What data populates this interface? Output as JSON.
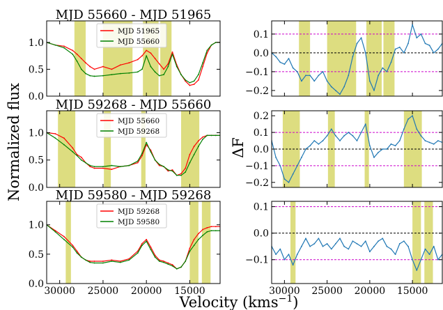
{
  "figure": {
    "xlabel": "Velocity (kms",
    "xlabel_sup": "−1",
    "xlabel_end": ")",
    "ylabel_left": "Normalized flux",
    "ylabel_right": "ΔF"
  },
  "chart_data": [
    {
      "id": "flux1",
      "type": "line",
      "title": "MJD 55660 - MJD 51965",
      "xlabel": "",
      "ylabel": "Normalized flux",
      "xlim": [
        31500,
        11500
      ],
      "ylim": [
        0,
        1.4
      ],
      "yticks": [
        0.0,
        0.5,
        1.0
      ],
      "ytick_labels": [
        "0.0",
        "0.5",
        "1.0"
      ],
      "xticks": [
        30000,
        25000,
        20000,
        15000
      ],
      "xtick_labels": [],
      "bands": [
        [
          28300,
          27000
        ],
        [
          25000,
          21600
        ],
        [
          20400,
          18600
        ],
        [
          18400,
          17100
        ]
      ],
      "legend": "top-center",
      "series": [
        {
          "name": "MJD 51965",
          "color": "#ff0000",
          "x": [
            31500,
            30500,
            29500,
            28500,
            28000,
            27500,
            27000,
            26500,
            26000,
            25000,
            24000,
            23000,
            22000,
            21000,
            20500,
            20000,
            19500,
            19000,
            18500,
            18000,
            17500,
            17000,
            16500,
            16000,
            15500,
            15000,
            14500,
            14000,
            13500,
            13000,
            12500,
            12000,
            11500
          ],
          "y": [
            1.0,
            0.95,
            0.93,
            0.85,
            0.78,
            0.7,
            0.62,
            0.55,
            0.5,
            0.55,
            0.5,
            0.58,
            0.62,
            0.68,
            0.75,
            0.85,
            0.8,
            0.7,
            0.6,
            0.5,
            0.6,
            0.82,
            0.58,
            0.4,
            0.28,
            0.2,
            0.22,
            0.3,
            0.55,
            0.8,
            0.95,
            1.0,
            1.0
          ]
        },
        {
          "name": "MJD 55660",
          "color": "#008000",
          "x": [
            31500,
            30500,
            29500,
            28500,
            28000,
            27500,
            27000,
            26500,
            26000,
            25000,
            24000,
            23000,
            22000,
            21000,
            20500,
            20000,
            19500,
            19000,
            18500,
            18000,
            17500,
            17000,
            16500,
            16000,
            15500,
            15000,
            14500,
            14000,
            13500,
            13000,
            12500,
            12000,
            11500
          ],
          "y": [
            1.0,
            0.95,
            0.9,
            0.78,
            0.65,
            0.5,
            0.42,
            0.38,
            0.37,
            0.38,
            0.4,
            0.42,
            0.43,
            0.45,
            0.5,
            0.75,
            0.55,
            0.45,
            0.38,
            0.4,
            0.55,
            0.78,
            0.55,
            0.4,
            0.3,
            0.25,
            0.28,
            0.4,
            0.62,
            0.85,
            0.95,
            1.0,
            1.0
          ]
        }
      ]
    },
    {
      "id": "diff1",
      "type": "line",
      "title": "",
      "xlim": [
        31500,
        11500
      ],
      "ylim": [
        -0.23,
        0.17
      ],
      "yticks": [
        -0.2,
        -0.1,
        0.0,
        0.1
      ],
      "ytick_labels": [
        "−0.2",
        "−0.1",
        "0.0",
        "0.1"
      ],
      "xticks": [
        30000,
        25000,
        20000,
        15000
      ],
      "xtick_labels": [],
      "bands": [
        [
          28300,
          27000
        ],
        [
          25000,
          21600
        ],
        [
          20400,
          18600
        ],
        [
          18400,
          17100
        ]
      ],
      "hlines": [
        {
          "y": 0.0,
          "color": "#000000"
        },
        {
          "y": 0.1,
          "color": "#cc00cc"
        },
        {
          "y": -0.1,
          "color": "#cc00cc"
        }
      ],
      "series": [
        {
          "name": "",
          "color": "#1f77b4",
          "x": [
            31500,
            31000,
            30500,
            30000,
            29500,
            29000,
            28500,
            28000,
            27500,
            27000,
            26500,
            26000,
            25500,
            25000,
            24500,
            24000,
            23500,
            23000,
            22500,
            22000,
            21500,
            21000,
            20500,
            20000,
            19500,
            19000,
            18500,
            18000,
            17500,
            17000,
            16500,
            16000,
            15500,
            15000,
            14500,
            14000,
            13500,
            13000,
            12500,
            12000,
            11500
          ],
          "y": [
            0.0,
            -0.02,
            -0.05,
            -0.06,
            -0.03,
            -0.08,
            -0.1,
            -0.15,
            -0.12,
            -0.12,
            -0.15,
            -0.12,
            -0.1,
            -0.15,
            -0.18,
            -0.2,
            -0.22,
            -0.18,
            -0.12,
            -0.02,
            0.05,
            0.08,
            0.0,
            -0.15,
            -0.2,
            -0.12,
            -0.08,
            -0.1,
            -0.05,
            0.02,
            0.03,
            0.0,
            0.05,
            0.15,
            0.08,
            0.1,
            0.05,
            0.04,
            0.0,
            0.02,
            0.05
          ]
        }
      ]
    },
    {
      "id": "flux2",
      "type": "line",
      "title": "MJD 59268 - MJD 55660",
      "xlim": [
        31500,
        11500
      ],
      "ylim": [
        0,
        1.4
      ],
      "yticks": [
        0.0,
        0.5,
        1.0
      ],
      "ytick_labels": [
        "0.0",
        "0.5",
        "1.0"
      ],
      "xticks": [
        30000,
        25000,
        20000,
        15000
      ],
      "xtick_labels": [],
      "bands": [
        [
          30200,
          28200
        ],
        [
          24900,
          24100
        ],
        [
          20600,
          20100
        ],
        [
          16000,
          13900
        ]
      ],
      "legend": "top-center",
      "series": [
        {
          "name": "MJD 55660",
          "color": "#ff0000",
          "x": [
            31500,
            30500,
            29500,
            28500,
            28000,
            27500,
            27000,
            26500,
            26000,
            25000,
            24000,
            23000,
            22000,
            21000,
            20500,
            20000,
            19500,
            19000,
            18500,
            18000,
            17500,
            17000,
            16500,
            16000,
            15500,
            15000,
            14500,
            14000,
            13500,
            13000,
            12500,
            12000,
            11500
          ],
          "y": [
            1.0,
            0.98,
            0.9,
            0.72,
            0.6,
            0.55,
            0.45,
            0.38,
            0.35,
            0.35,
            0.33,
            0.38,
            0.4,
            0.45,
            0.58,
            0.78,
            0.68,
            0.5,
            0.4,
            0.38,
            0.3,
            0.32,
            0.22,
            0.25,
            0.35,
            0.6,
            0.75,
            0.85,
            0.92,
            0.95,
            0.95,
            0.95,
            0.95
          ]
        },
        {
          "name": "MJD 59268",
          "color": "#008000",
          "x": [
            31500,
            30500,
            29500,
            28500,
            28000,
            27500,
            27000,
            26500,
            26000,
            25000,
            24000,
            23000,
            22000,
            21000,
            20500,
            20000,
            19500,
            19000,
            18500,
            18000,
            17500,
            17000,
            16500,
            16000,
            15500,
            15000,
            14500,
            14000,
            13500,
            13000,
            12500,
            12000,
            11500
          ],
          "y": [
            1.0,
            0.9,
            0.78,
            0.65,
            0.58,
            0.5,
            0.45,
            0.4,
            0.38,
            0.38,
            0.4,
            0.38,
            0.4,
            0.48,
            0.62,
            0.82,
            0.65,
            0.5,
            0.42,
            0.38,
            0.32,
            0.3,
            0.22,
            0.22,
            0.28,
            0.45,
            0.6,
            0.75,
            0.88,
            0.95,
            0.95,
            0.95,
            0.95
          ]
        }
      ]
    },
    {
      "id": "diff2",
      "type": "line",
      "title": "",
      "ylabel": "ΔF",
      "xlim": [
        31500,
        11500
      ],
      "ylim": [
        -0.23,
        0.23
      ],
      "yticks": [
        -0.2,
        -0.1,
        0.0,
        0.1,
        0.2
      ],
      "ytick_labels": [
        "−0.2",
        "−0.1",
        "0.0",
        "0.1",
        "0.2"
      ],
      "xticks": [
        30000,
        25000,
        20000,
        15000
      ],
      "xtick_labels": [],
      "bands": [
        [
          30200,
          28200
        ],
        [
          24900,
          24100
        ],
        [
          20600,
          20100
        ],
        [
          16000,
          13900
        ]
      ],
      "hlines": [
        {
          "y": 0.0,
          "color": "#000000"
        },
        {
          "y": 0.1,
          "color": "#cc00cc"
        },
        {
          "y": -0.1,
          "color": "#cc00cc"
        }
      ],
      "series": [
        {
          "name": "",
          "color": "#1f77b4",
          "x": [
            31500,
            31000,
            30500,
            30000,
            29500,
            29000,
            28500,
            28000,
            27500,
            27000,
            26500,
            26000,
            25500,
            25000,
            24500,
            24000,
            23500,
            23000,
            22500,
            22000,
            21500,
            21000,
            20500,
            20000,
            19500,
            19000,
            18500,
            18000,
            17500,
            17000,
            16500,
            16000,
            15500,
            15000,
            14500,
            14000,
            13500,
            13000,
            12500,
            12000,
            11500
          ],
          "y": [
            0.05,
            -0.05,
            -0.1,
            -0.18,
            -0.2,
            -0.15,
            -0.1,
            -0.05,
            0.0,
            0.02,
            0.05,
            0.03,
            0.05,
            0.08,
            0.12,
            0.08,
            0.05,
            0.08,
            0.1,
            0.08,
            0.05,
            0.1,
            0.15,
            0.02,
            -0.05,
            -0.02,
            0.0,
            0.0,
            0.03,
            0.02,
            0.05,
            0.12,
            0.18,
            0.2,
            0.12,
            0.08,
            0.05,
            0.04,
            0.03,
            0.05,
            0.04
          ]
        }
      ]
    },
    {
      "id": "flux3",
      "type": "line",
      "title": "MJD 59580 - MJD 59268",
      "xlim": [
        31500,
        11500
      ],
      "ylim": [
        0,
        1.4
      ],
      "yticks": [
        0.0,
        0.5,
        1.0
      ],
      "ytick_labels": [
        "0.0",
        "0.5",
        "1.0"
      ],
      "xticks": [
        30000,
        25000,
        20000,
        15000
      ],
      "xtick_labels": [
        "30000",
        "25000",
        "20000",
        "15000"
      ],
      "bands": [
        [
          29300,
          28700
        ],
        [
          15000,
          14000
        ],
        [
          13600,
          12600
        ]
      ],
      "legend": "top-center",
      "series": [
        {
          "name": "MJD 59268",
          "color": "#ff0000",
          "x": [
            31500,
            30500,
            29500,
            28500,
            28000,
            27500,
            27000,
            26500,
            26000,
            25000,
            24000,
            23000,
            22000,
            21000,
            20500,
            20000,
            19500,
            19000,
            18500,
            18000,
            17500,
            17000,
            16500,
            16000,
            15500,
            15000,
            14500,
            14000,
            13500,
            13000,
            12500,
            12000,
            11500
          ],
          "y": [
            1.0,
            0.9,
            0.8,
            0.65,
            0.55,
            0.45,
            0.4,
            0.38,
            0.38,
            0.38,
            0.4,
            0.38,
            0.42,
            0.55,
            0.68,
            0.75,
            0.62,
            0.48,
            0.4,
            0.38,
            0.35,
            0.32,
            0.25,
            0.28,
            0.38,
            0.6,
            0.75,
            0.85,
            0.92,
            0.95,
            0.97,
            0.97,
            0.97
          ]
        },
        {
          "name": "MJD 59580",
          "color": "#008000",
          "x": [
            31500,
            30500,
            29500,
            28500,
            28000,
            27500,
            27000,
            26500,
            26000,
            25000,
            24000,
            23000,
            22000,
            21000,
            20500,
            20000,
            19500,
            19000,
            18500,
            18000,
            17500,
            17000,
            16500,
            16000,
            15500,
            15000,
            14500,
            14000,
            13500,
            13000,
            12500,
            12000,
            11500
          ],
          "y": [
            1.0,
            0.88,
            0.75,
            0.62,
            0.52,
            0.45,
            0.4,
            0.36,
            0.35,
            0.35,
            0.38,
            0.36,
            0.4,
            0.52,
            0.65,
            0.72,
            0.58,
            0.45,
            0.38,
            0.36,
            0.33,
            0.3,
            0.25,
            0.28,
            0.38,
            0.55,
            0.65,
            0.75,
            0.82,
            0.88,
            0.9,
            0.9,
            0.9
          ]
        }
      ]
    },
    {
      "id": "diff3",
      "type": "line",
      "title": "",
      "xlim": [
        31500,
        11500
      ],
      "ylim": [
        -0.19,
        0.12
      ],
      "yticks": [
        -0.1,
        0.0,
        0.1
      ],
      "ytick_labels": [
        "−0.1",
        "0.0",
        "0.1"
      ],
      "xticks": [
        30000,
        25000,
        20000,
        15000
      ],
      "xtick_labels": [
        "30000",
        "25000",
        "20000",
        "15000"
      ],
      "bands": [
        [
          29300,
          28700
        ],
        [
          15000,
          14000
        ],
        [
          13600,
          12600
        ]
      ],
      "hlines": [
        {
          "y": 0.0,
          "color": "#000000"
        },
        {
          "y": 0.1,
          "color": "#cc00cc"
        },
        {
          "y": -0.1,
          "color": "#cc00cc"
        }
      ],
      "series": [
        {
          "name": "",
          "color": "#1f77b4",
          "x": [
            31500,
            31000,
            30500,
            30000,
            29500,
            29000,
            28500,
            28000,
            27500,
            27000,
            26500,
            26000,
            25500,
            25000,
            24500,
            24000,
            23500,
            23000,
            22500,
            22000,
            21500,
            21000,
            20500,
            20000,
            19500,
            19000,
            18500,
            18000,
            17500,
            17000,
            16500,
            16000,
            15500,
            15000,
            14500,
            14000,
            13500,
            13000,
            12500,
            12000,
            11500
          ],
          "y": [
            -0.05,
            -0.08,
            -0.06,
            -0.1,
            -0.08,
            -0.12,
            -0.08,
            -0.05,
            -0.02,
            -0.05,
            -0.04,
            -0.02,
            -0.05,
            -0.04,
            -0.06,
            -0.04,
            -0.02,
            -0.05,
            -0.06,
            -0.03,
            -0.04,
            -0.05,
            -0.03,
            -0.07,
            -0.05,
            -0.03,
            -0.02,
            -0.05,
            -0.06,
            -0.08,
            -0.04,
            -0.03,
            -0.05,
            -0.1,
            -0.14,
            -0.1,
            -0.06,
            -0.08,
            -0.05,
            -0.1,
            -0.08
          ]
        }
      ]
    }
  ]
}
